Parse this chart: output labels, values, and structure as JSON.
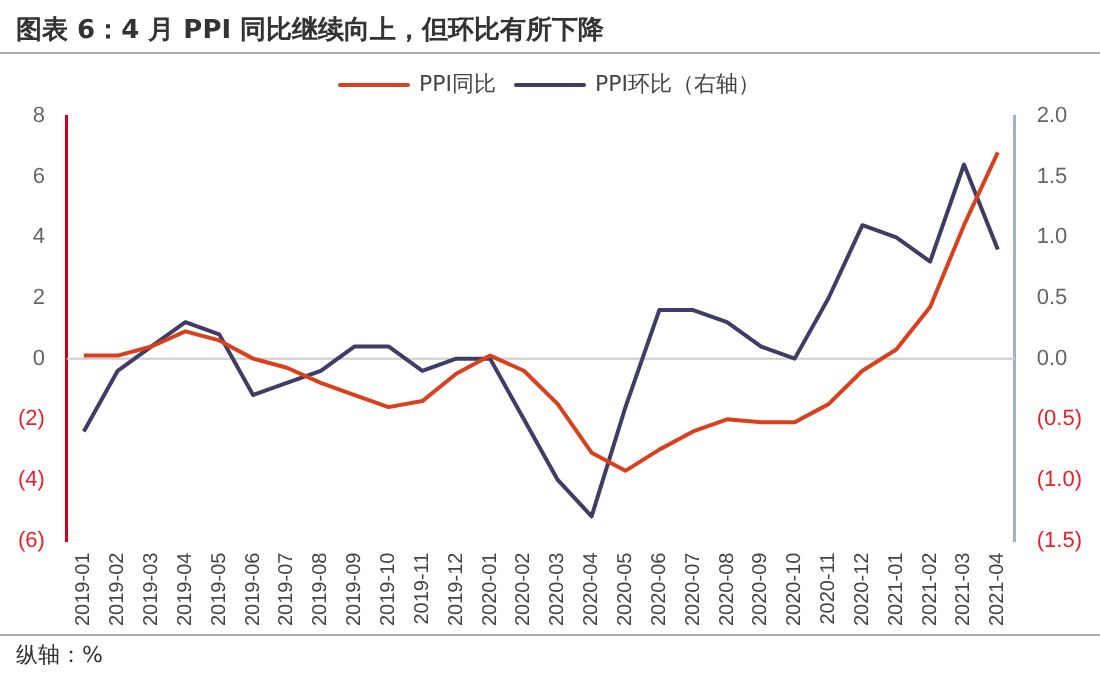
{
  "chart_data": {
    "type": "line",
    "title": "图表 6：4 月 PPI 同比继续向上，但环比有所下降",
    "categories": [
      "2019-01",
      "2019-02",
      "2019-03",
      "2019-04",
      "2019-05",
      "2019-06",
      "2019-07",
      "2019-08",
      "2019-09",
      "2019-10",
      "2019-11",
      "2019-12",
      "2020-01",
      "2020-02",
      "2020-03",
      "2020-04",
      "2020-05",
      "2020-06",
      "2020-07",
      "2020-08",
      "2020-09",
      "2020-10",
      "2020-11",
      "2020-12",
      "2021-01",
      "2021-02",
      "2021-03",
      "2021-04"
    ],
    "series": [
      {
        "name": "PPI同比",
        "color": "#d9411e",
        "values": [
          0.1,
          0.1,
          0.4,
          0.9,
          0.6,
          0.0,
          -0.3,
          -0.8,
          -1.2,
          -1.6,
          -1.4,
          -0.5,
          0.1,
          -0.4,
          -1.5,
          -3.1,
          -3.7,
          -3.0,
          -2.4,
          -2.0,
          -2.1,
          -2.1,
          -1.5,
          -0.4,
          0.3,
          1.7,
          4.4,
          6.8
        ]
      },
      {
        "name": "PPI环比（右轴）",
        "color": "#3f3d66",
        "axis": "y2",
        "values": [
          -0.6,
          -0.1,
          0.1,
          0.3,
          0.2,
          -0.3,
          -0.2,
          -0.1,
          0.1,
          0.1,
          -0.1,
          0.0,
          0.0,
          -0.5,
          -1.0,
          -1.3,
          -0.4,
          0.4,
          0.4,
          0.3,
          0.1,
          0.0,
          0.5,
          1.1,
          1.0,
          0.8,
          1.6,
          0.9
        ]
      }
    ],
    "ylim": [
      -6,
      8
    ],
    "yticks": [
      {
        "value": -6,
        "label": "(6)"
      },
      {
        "value": -4,
        "label": "(4)"
      },
      {
        "value": -2,
        "label": "(2)"
      },
      0,
      2,
      4,
      6,
      8
    ],
    "y2lim": [
      -1.5,
      2.0
    ],
    "y2ticks": [
      {
        "value": -1.5,
        "label": "(1.5)"
      },
      {
        "value": -1.0,
        "label": "(1.0)"
      },
      {
        "value": -0.5,
        "label": "(0.5)"
      },
      {
        "value": 0,
        "label": "0.0"
      },
      {
        "value": 0.5,
        "label": "0.5"
      },
      {
        "value": 1.0,
        "label": "1.0"
      },
      {
        "value": 1.5,
        "label": "1.5"
      },
      {
        "value": 2.0,
        "label": "2.0"
      }
    ],
    "ref_lines": [
      {
        "axis": "y",
        "value": 0,
        "color": "#cccccc"
      }
    ],
    "grid": false,
    "legend": "top right",
    "marker": "none",
    "line_style": "solid",
    "annotations": [
      "纵轴：%"
    ]
  }
}
